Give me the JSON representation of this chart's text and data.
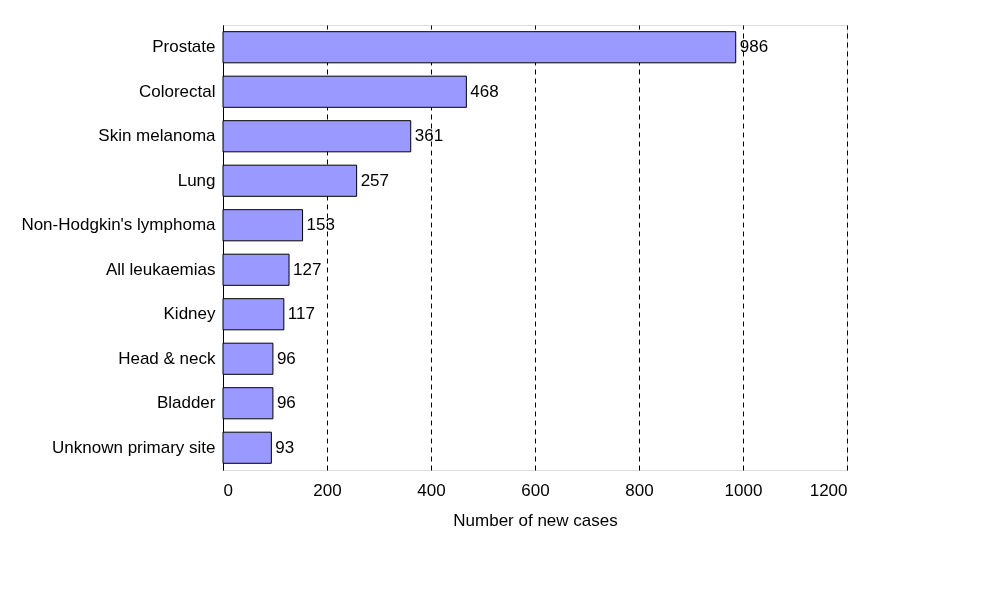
{
  "chart_data": {
    "type": "bar",
    "orientation": "horizontal",
    "xlabel": "Number of new cases",
    "categories": [
      "Prostate",
      "Colorectal",
      "Skin melanoma",
      "Lung",
      "Non-Hodgkin's lymphoma",
      "All leukaemias",
      "Kidney",
      "Head & neck",
      "Bladder",
      "Unknown primary site"
    ],
    "values": [
      986,
      468,
      361,
      257,
      153,
      127,
      117,
      96,
      96,
      93
    ],
    "color": "#9999ff",
    "xlim": [
      0,
      1200
    ],
    "xticks": [
      0,
      200,
      400,
      600,
      800,
      1000,
      1200
    ],
    "grid": "x",
    "data_labels": true
  }
}
